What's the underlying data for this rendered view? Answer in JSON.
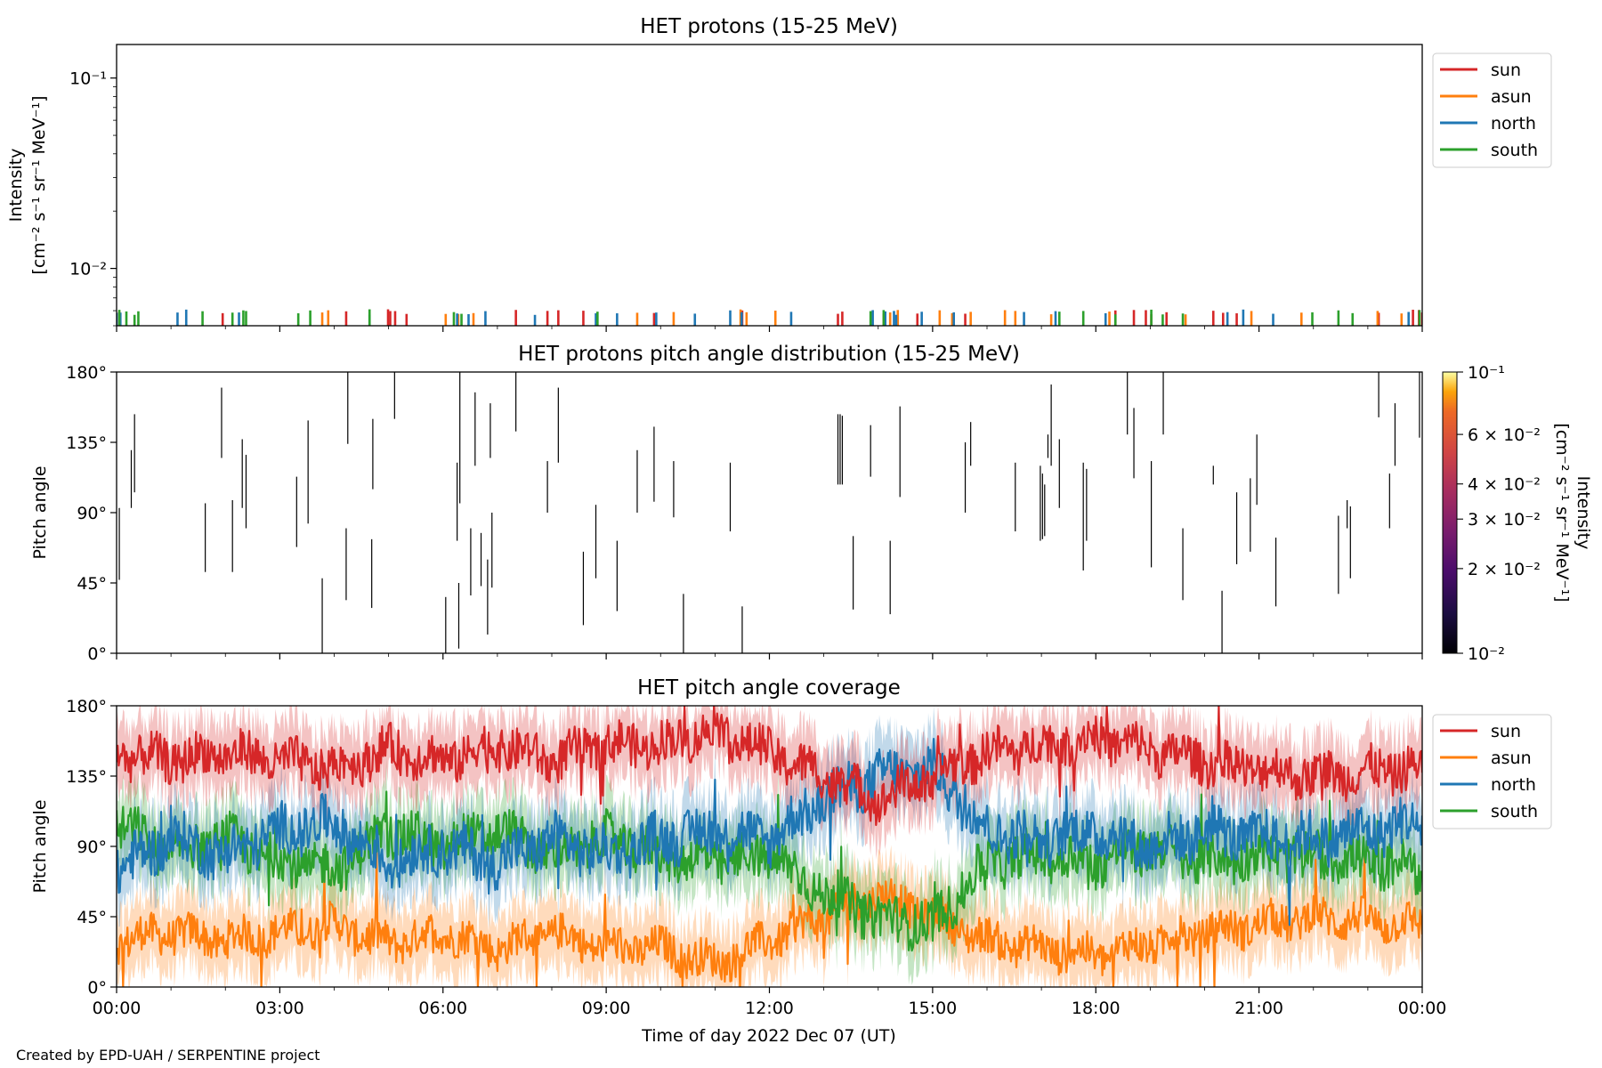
{
  "credit": "Created by EPD-UAH / SERPENTINE project",
  "colors": {
    "sun": "#d62728",
    "asun": "#ff7f0e",
    "north": "#1f77b4",
    "south": "#2ca02c"
  },
  "chart_data": [
    {
      "type": "line",
      "title": "HET protons (15-25 MeV)",
      "ylabel_line1": "Intensity",
      "ylabel_line2": "[cm⁻² s⁻¹ sr⁻¹ MeV⁻¹]",
      "yscale": "log",
      "ylim": [
        0.005,
        0.15
      ],
      "yticks": [
        {
          "value": 0.01,
          "label": "10⁻²"
        },
        {
          "value": 0.1,
          "label": "10⁻¹"
        }
      ],
      "xlim": [
        0,
        24
      ],
      "legend_position": "outside-right-top",
      "series": [
        {
          "name": "sun",
          "spikes": [
            0.05,
            1.95,
            4.22,
            4.99,
            5.03,
            5.12,
            5.33,
            7.34,
            7.92,
            8.12,
            8.58,
            9.88,
            11.5,
            13.26,
            13.34,
            14.72,
            15.6,
            18.36,
            18.7,
            18.92,
            19.02,
            19.3,
            20.16,
            20.34,
            20.59,
            23.2,
            23.83,
            23.94,
            24.0
          ]
        },
        {
          "name": "asun",
          "spikes": [
            3.78,
            3.89,
            6.05,
            6.28,
            6.56,
            9.57,
            10.24,
            11.47,
            11.58,
            12.11,
            14.1,
            14.22,
            14.36,
            15.13,
            15.36,
            15.7,
            16.33,
            16.52,
            17.18,
            18.25,
            19.65,
            20.86,
            21.78,
            23.18,
            23.62
          ]
        },
        {
          "name": "north",
          "spikes": [
            0.0,
            0.07,
            1.12,
            1.28,
            2.25,
            4.65,
            6.26,
            6.47,
            6.78,
            7.69,
            8.81,
            9.2,
            9.92,
            10.63,
            11.28,
            11.49,
            12.4,
            13.9,
            14.13,
            14.29,
            14.33,
            14.8,
            15.39,
            16.68,
            17.26,
            18.18,
            20.42,
            20.71,
            21.26,
            23.75
          ]
        },
        {
          "name": "south",
          "spikes": [
            0.05,
            0.18,
            0.33,
            0.4,
            1.58,
            2.13,
            2.33,
            2.38,
            3.34,
            3.56,
            4.65,
            6.2,
            6.34,
            8.84,
            13.86,
            14.1,
            17.33,
            17.77,
            18.36,
            19.02,
            19.23,
            19.6,
            21.98,
            22.46,
            22.72,
            23.95
          ]
        }
      ]
    },
    {
      "type": "heatmap",
      "title": "HET protons pitch angle distribution (15-25 MeV)",
      "ylabel": "Pitch angle",
      "ylim": [
        0,
        180
      ],
      "yticks": [
        "0°",
        "45°",
        "90°",
        "135°",
        "180°"
      ],
      "xlim": [
        0,
        24
      ],
      "colorbar": {
        "label_line1": "Intensity",
        "label_line2": "[cm⁻² s⁻¹ sr⁻¹ MeV⁻¹]",
        "scale": "log",
        "range": [
          0.01,
          0.1
        ],
        "ticks": [
          {
            "value": 0.01,
            "label": "10⁻²"
          },
          {
            "value": 0.02,
            "label": "2 × 10⁻²"
          },
          {
            "value": 0.03,
            "label": "3 × 10⁻²"
          },
          {
            "value": 0.04,
            "label": "4 × 10⁻²"
          },
          {
            "value": 0.06,
            "label": "6 × 10⁻²"
          },
          {
            "value": 0.1,
            "label": "10⁻¹"
          }
        ]
      },
      "segments": [
        [
          0.05,
          47,
          93
        ],
        [
          0.27,
          93,
          130
        ],
        [
          0.33,
          103,
          153
        ],
        [
          1.63,
          52,
          96
        ],
        [
          1.93,
          125,
          170
        ],
        [
          2.13,
          52,
          98
        ],
        [
          2.31,
          93,
          137
        ],
        [
          2.38,
          80,
          127
        ],
        [
          3.31,
          68,
          113
        ],
        [
          3.52,
          83,
          149
        ],
        [
          3.78,
          0,
          48
        ],
        [
          4.22,
          34,
          80
        ],
        [
          4.25,
          134,
          180
        ],
        [
          4.69,
          29,
          73
        ],
        [
          4.71,
          105,
          150
        ],
        [
          5.11,
          150,
          180
        ],
        [
          6.05,
          0,
          36
        ],
        [
          6.26,
          72,
          122
        ],
        [
          6.29,
          3,
          45
        ],
        [
          6.31,
          96,
          180
        ],
        [
          6.51,
          37,
          80
        ],
        [
          6.59,
          120,
          167
        ],
        [
          6.7,
          43,
          77
        ],
        [
          6.82,
          12,
          60
        ],
        [
          6.87,
          125,
          160
        ],
        [
          6.9,
          42,
          90
        ],
        [
          7.34,
          142,
          180
        ],
        [
          7.92,
          90,
          123
        ],
        [
          8.12,
          122,
          170
        ],
        [
          8.58,
          18,
          65
        ],
        [
          8.81,
          48,
          95
        ],
        [
          9.2,
          27,
          72
        ],
        [
          9.57,
          90,
          130
        ],
        [
          9.88,
          97,
          145
        ],
        [
          10.24,
          87,
          123
        ],
        [
          10.42,
          0,
          38
        ],
        [
          11.28,
          78,
          122
        ],
        [
          11.5,
          0,
          30
        ],
        [
          13.26,
          108,
          153
        ],
        [
          13.3,
          108,
          153
        ],
        [
          13.34,
          108,
          152
        ],
        [
          13.54,
          28,
          75
        ],
        [
          13.86,
          113,
          146
        ],
        [
          14.22,
          25,
          72
        ],
        [
          14.4,
          100,
          158
        ],
        [
          15.6,
          90,
          135
        ],
        [
          15.7,
          120,
          148
        ],
        [
          16.52,
          78,
          122
        ],
        [
          16.98,
          72,
          120
        ],
        [
          17.02,
          73,
          115
        ],
        [
          17.06,
          75,
          108
        ],
        [
          17.12,
          125,
          140
        ],
        [
          17.18,
          120,
          172
        ],
        [
          17.33,
          93,
          137
        ],
        [
          17.77,
          53,
          122
        ],
        [
          17.83,
          72,
          118
        ],
        [
          18.58,
          140,
          180
        ],
        [
          18.7,
          112,
          157
        ],
        [
          19.02,
          55,
          123
        ],
        [
          19.24,
          140,
          180
        ],
        [
          19.6,
          34,
          80
        ],
        [
          20.16,
          108,
          120
        ],
        [
          20.32,
          0,
          40
        ],
        [
          20.59,
          57,
          103
        ],
        [
          20.84,
          65,
          112
        ],
        [
          20.96,
          95,
          140
        ],
        [
          21.31,
          30,
          74
        ],
        [
          22.46,
          38,
          88
        ],
        [
          22.62,
          80,
          98
        ],
        [
          22.68,
          48,
          94
        ],
        [
          23.2,
          151,
          180
        ],
        [
          23.4,
          80,
          115
        ],
        [
          23.5,
          120,
          160
        ],
        [
          23.95,
          138,
          180
        ]
      ]
    },
    {
      "type": "line",
      "title": "HET pitch angle coverage",
      "ylabel": "Pitch angle",
      "xlabel": "Time of day 2022 Dec 07 (UT)",
      "ylim": [
        0,
        180
      ],
      "yticks": [
        "0°",
        "45°",
        "90°",
        "135°",
        "180°"
      ],
      "xlim": [
        0,
        24
      ],
      "xticks": [
        "00:00",
        "03:00",
        "06:00",
        "09:00",
        "12:00",
        "15:00",
        "18:00",
        "21:00",
        "00:00"
      ],
      "legend_position": "outside-right-top",
      "shaded_band_halfwidth_deg": 22,
      "series": [
        {
          "name": "sun",
          "x": [
            0,
            1,
            2,
            3,
            4,
            5,
            6,
            7,
            8,
            9,
            10,
            11,
            12,
            13,
            14,
            15,
            16,
            17,
            18,
            19,
            20,
            21,
            22,
            23,
            24
          ],
          "y": [
            150,
            145,
            150,
            145,
            140,
            152,
            145,
            155,
            145,
            155,
            155,
            165,
            150,
            135,
            120,
            135,
            150,
            155,
            160,
            152,
            145,
            140,
            135,
            138,
            140
          ]
        },
        {
          "name": "asun",
          "x": [
            0,
            1,
            2,
            3,
            4,
            5,
            6,
            7,
            8,
            9,
            10,
            11,
            12,
            13,
            14,
            15,
            16,
            17,
            18,
            19,
            20,
            21,
            22,
            23,
            24
          ],
          "y": [
            30,
            35,
            30,
            35,
            40,
            28,
            35,
            25,
            35,
            25,
            25,
            15,
            30,
            45,
            60,
            45,
            30,
            25,
            20,
            28,
            35,
            40,
            45,
            42,
            40
          ]
        },
        {
          "name": "north",
          "x": [
            0,
            1,
            2,
            3,
            4,
            5,
            6,
            7,
            8,
            9,
            10,
            11,
            12,
            13,
            14,
            15,
            16,
            17,
            18,
            19,
            20,
            21,
            22,
            23,
            24
          ],
          "y": [
            75,
            95,
            85,
            100,
            105,
            80,
            90,
            80,
            95,
            85,
            95,
            100,
            95,
            120,
            135,
            140,
            100,
            95,
            100,
            90,
            100,
            95,
            95,
            100,
            105
          ]
        },
        {
          "name": "south",
          "x": [
            0,
            1,
            2,
            3,
            4,
            5,
            6,
            7,
            8,
            9,
            10,
            11,
            12,
            13,
            14,
            15,
            16,
            17,
            18,
            19,
            20,
            21,
            22,
            23,
            24
          ],
          "y": [
            105,
            85,
            95,
            80,
            75,
            100,
            90,
            100,
            85,
            95,
            85,
            80,
            85,
            60,
            45,
            40,
            80,
            85,
            80,
            90,
            80,
            85,
            85,
            80,
            75
          ]
        }
      ]
    }
  ]
}
